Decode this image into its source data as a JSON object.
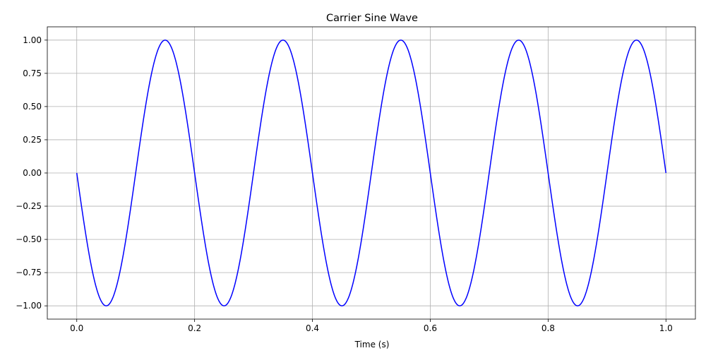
{
  "chart_data": {
    "type": "line",
    "title": "Carrier Sine Wave",
    "xlabel": "Time (s)",
    "ylabel": "",
    "xlim": [
      -0.05,
      1.05
    ],
    "ylim": [
      -1.1,
      1.1
    ],
    "x_ticks": [
      0.0,
      0.2,
      0.4,
      0.6,
      0.8,
      1.0
    ],
    "x_tick_labels": [
      "0.0",
      "0.2",
      "0.4",
      "0.6",
      "0.8",
      "1.0"
    ],
    "y_ticks": [
      1.0,
      0.75,
      0.5,
      0.25,
      0.0,
      -0.25,
      -0.5,
      -0.75,
      -1.0
    ],
    "y_tick_labels": [
      "1.00",
      "0.75",
      "0.50",
      "0.25",
      "0.00",
      "−0.25",
      "−0.50",
      "−0.75",
      "−1.00"
    ],
    "grid": true,
    "series": [
      {
        "color": "#0000ff",
        "function": "y = -sin(2*pi*5*t)",
        "frequency": 5,
        "amplitude": 1,
        "x_range": [
          0,
          1
        ],
        "points": [
          {
            "x": 0.0,
            "y": 0.0
          },
          {
            "x": 0.05,
            "y": -1.0
          },
          {
            "x": 0.15,
            "y": 1.0
          },
          {
            "x": 0.25,
            "y": -1.0
          },
          {
            "x": 0.35,
            "y": 1.0
          },
          {
            "x": 0.45,
            "y": -1.0
          },
          {
            "x": 0.55,
            "y": 1.0
          },
          {
            "x": 0.65,
            "y": -1.0
          },
          {
            "x": 0.75,
            "y": 1.0
          },
          {
            "x": 0.85,
            "y": -1.0
          },
          {
            "x": 0.95,
            "y": 1.0
          },
          {
            "x": 1.0,
            "y": 0.0
          }
        ]
      }
    ]
  },
  "style": {
    "grid_color": "#b0b0b0",
    "axis_color": "#000000"
  }
}
